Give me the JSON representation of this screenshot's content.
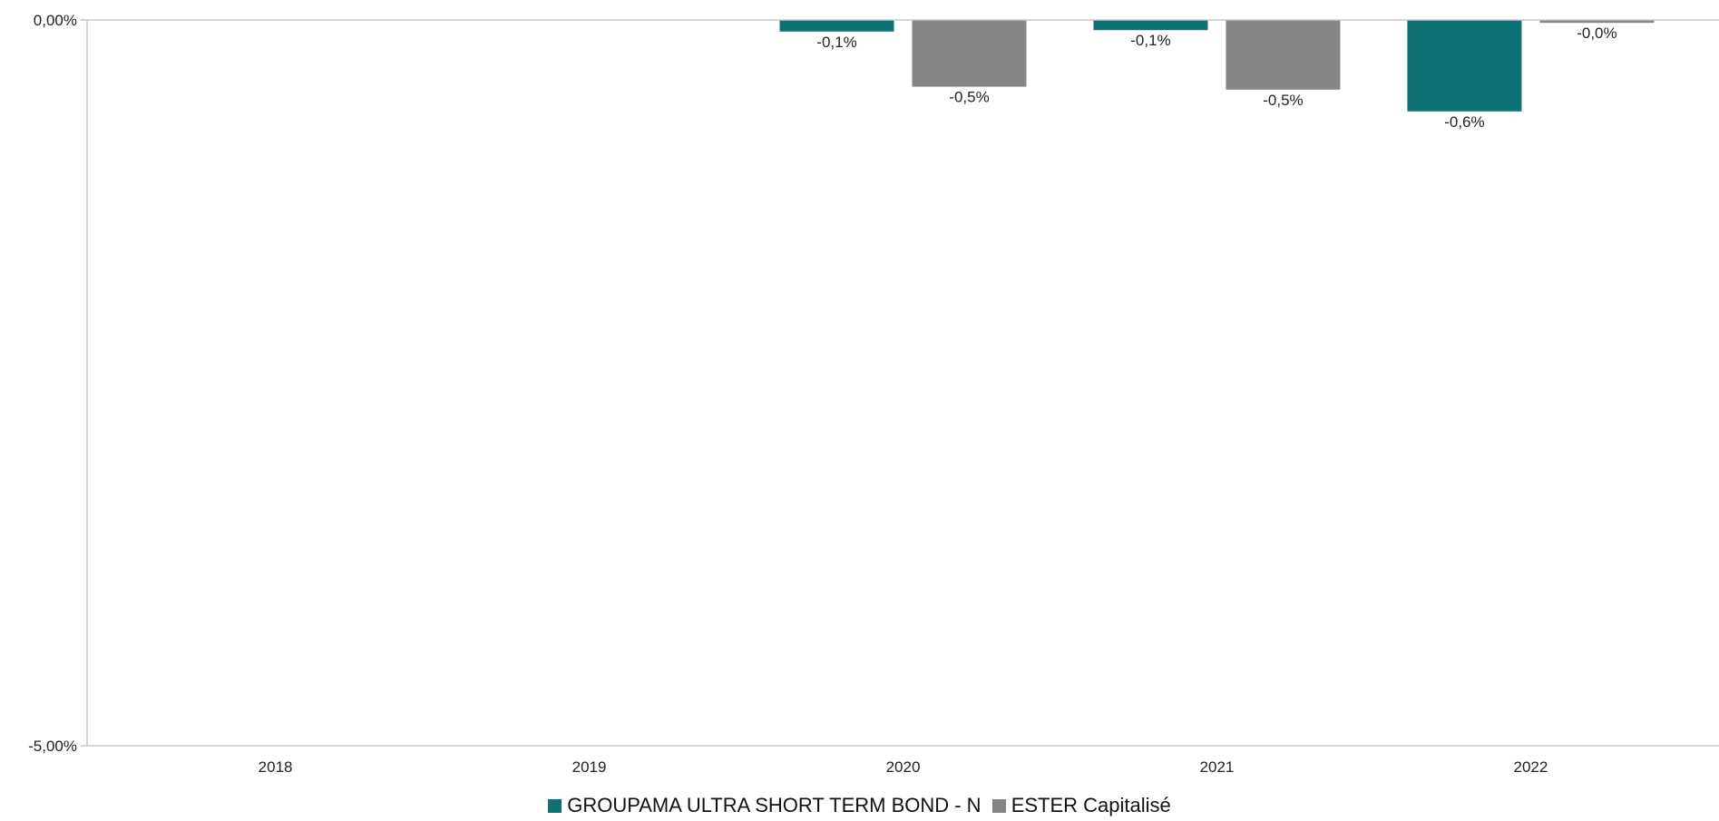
{
  "chart_data": {
    "type": "bar",
    "categories": [
      "2018",
      "2019",
      "2020",
      "2021",
      "2022"
    ],
    "series": [
      {
        "name": "GROUPAMA ULTRA SHORT TERM BOND - N",
        "color": "#0e7275",
        "values": [
          null,
          null,
          -0.08,
          -0.07,
          -0.63
        ],
        "labels": [
          "",
          "",
          "-0,1%",
          "-0,1%",
          "-0,6%"
        ]
      },
      {
        "name": "ESTER Capitalisé",
        "color": "#858585",
        "values": [
          null,
          null,
          -0.46,
          -0.48,
          -0.02
        ],
        "labels": [
          "",
          "",
          "-0,5%",
          "-0,5%",
          "-0,0%"
        ]
      }
    ],
    "ylim": [
      -5,
      0
    ],
    "yticks": [
      0,
      -5
    ],
    "ytick_labels": [
      "0,00%",
      "-5,00%"
    ],
    "grid": false,
    "legend_position": "bottom-center"
  }
}
